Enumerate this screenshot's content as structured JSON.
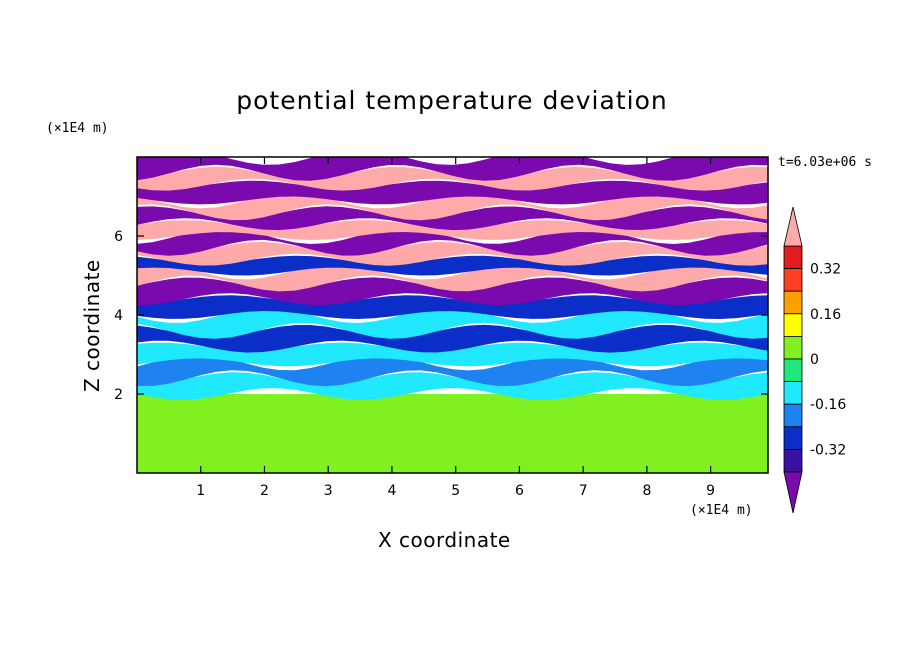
{
  "chart_data": {
    "type": "heatmap",
    "title": "potential temperature deviation",
    "xlabel": "X coordinate",
    "ylabel": "Z coordinate",
    "x_unit": "(×1E4 m)",
    "y_unit": "(×1E4 m)",
    "time_label": "t=6.03e+06 s",
    "xlim": [
      0,
      9.9
    ],
    "ylim": [
      0,
      8.0
    ],
    "x_ticks": [
      "1",
      "2",
      "3",
      "4",
      "5",
      "6",
      "7",
      "8",
      "9"
    ],
    "y_ticks": [
      "2",
      "4",
      "6"
    ],
    "colorbar": {
      "labels": [
        "0.32",
        "0.16",
        "0",
        "-0.16",
        "-0.32"
      ],
      "levels": [
        -0.4,
        -0.32,
        -0.24,
        -0.16,
        -0.08,
        0,
        0.08,
        0.16,
        0.24,
        0.32,
        0.4
      ],
      "colors": [
        "#7a0aad",
        "#3a10a0",
        "#0b2ec9",
        "#1e82f0",
        "#20e8ff",
        "#1de87a",
        "#80f020",
        "#ffff00",
        "#ffa000",
        "#ff4020",
        "#e01c1c",
        "#ffaaaa"
      ]
    },
    "bands": [
      {
        "z_min": 0.0,
        "z_max": 2.0,
        "value": 0.02
      },
      {
        "z_min": 2.0,
        "z_max": 2.4,
        "value": -0.1
      },
      {
        "z_min": 2.4,
        "z_max": 2.8,
        "value": -0.2
      },
      {
        "z_min": 2.8,
        "z_max": 3.2,
        "value": -0.1
      },
      {
        "z_min": 3.2,
        "z_max": 3.6,
        "value": -0.25
      },
      {
        "z_min": 3.6,
        "z_max": 4.0,
        "value": -0.12
      },
      {
        "z_min": 4.0,
        "z_max": 4.4,
        "value": -0.3
      },
      {
        "z_min": 4.4,
        "z_max": 4.8,
        "value": -0.45
      },
      {
        "z_min": 4.8,
        "z_max": 5.1,
        "value": 0.45
      },
      {
        "z_min": 5.1,
        "z_max": 5.4,
        "value": -0.3
      },
      {
        "z_min": 5.4,
        "z_max": 5.7,
        "value": 0.45
      },
      {
        "z_min": 5.7,
        "z_max": 6.0,
        "value": -0.45
      },
      {
        "z_min": 6.0,
        "z_max": 6.3,
        "value": 0.45
      },
      {
        "z_min": 6.3,
        "z_max": 6.6,
        "value": -0.45
      },
      {
        "z_min": 6.6,
        "z_max": 6.9,
        "value": 0.45
      },
      {
        "z_min": 6.9,
        "z_max": 7.3,
        "value": -0.45
      },
      {
        "z_min": 7.3,
        "z_max": 7.6,
        "value": 0.45
      },
      {
        "z_min": 7.6,
        "z_max": 8.0,
        "value": -0.45
      }
    ]
  }
}
